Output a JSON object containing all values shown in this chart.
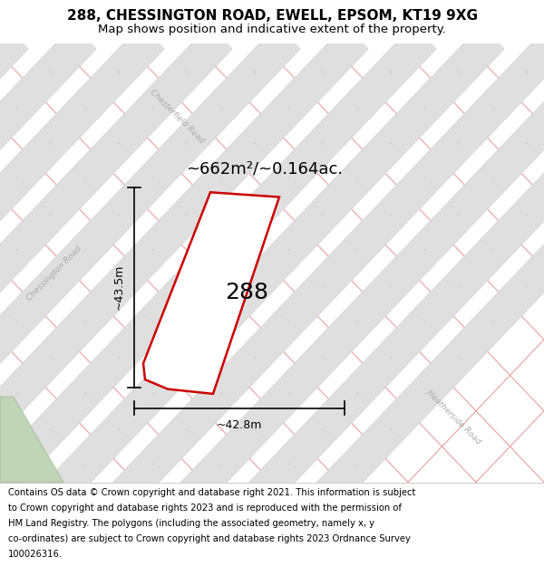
{
  "title": "288, CHESSINGTON ROAD, EWELL, EPSOM, KT19 9XG",
  "subtitle": "Map shows position and indicative extent of the property.",
  "footer_lines": [
    "Contains OS data © Crown copyright and database right 2021. This information is subject",
    "to Crown copyright and database rights 2023 and is reproduced with the permission of",
    "HM Land Registry. The polygons (including the associated geometry, namely x, y",
    "co-ordinates) are subject to Crown copyright and database rights 2023 Ordnance Survey",
    "100026316."
  ],
  "area_label": "~662m²/~0.164ac.",
  "property_number": "288",
  "dim_width": "~42.8m",
  "dim_height": "~43.5m",
  "map_bg": "#f7f6f6",
  "road_border_color": "#e8a0a0",
  "road_fill_color": "#f5f0f0",
  "block_fill": "#e0dfdf",
  "block_edge": "#d0cfcf",
  "property_fill": "#ffffff",
  "property_edge": "#cc0000",
  "green_fill": "#c0d4b8",
  "green_edge": "#a0b898",
  "road_label_color": "#aaaaaa",
  "title_fontsize": 11,
  "subtitle_fontsize": 9.5,
  "footer_fontsize": 7.2,
  "area_fontsize": 13,
  "prop_num_fontsize": 18,
  "dim_fontsize": 9,
  "road_label_fontsize": 6.5
}
